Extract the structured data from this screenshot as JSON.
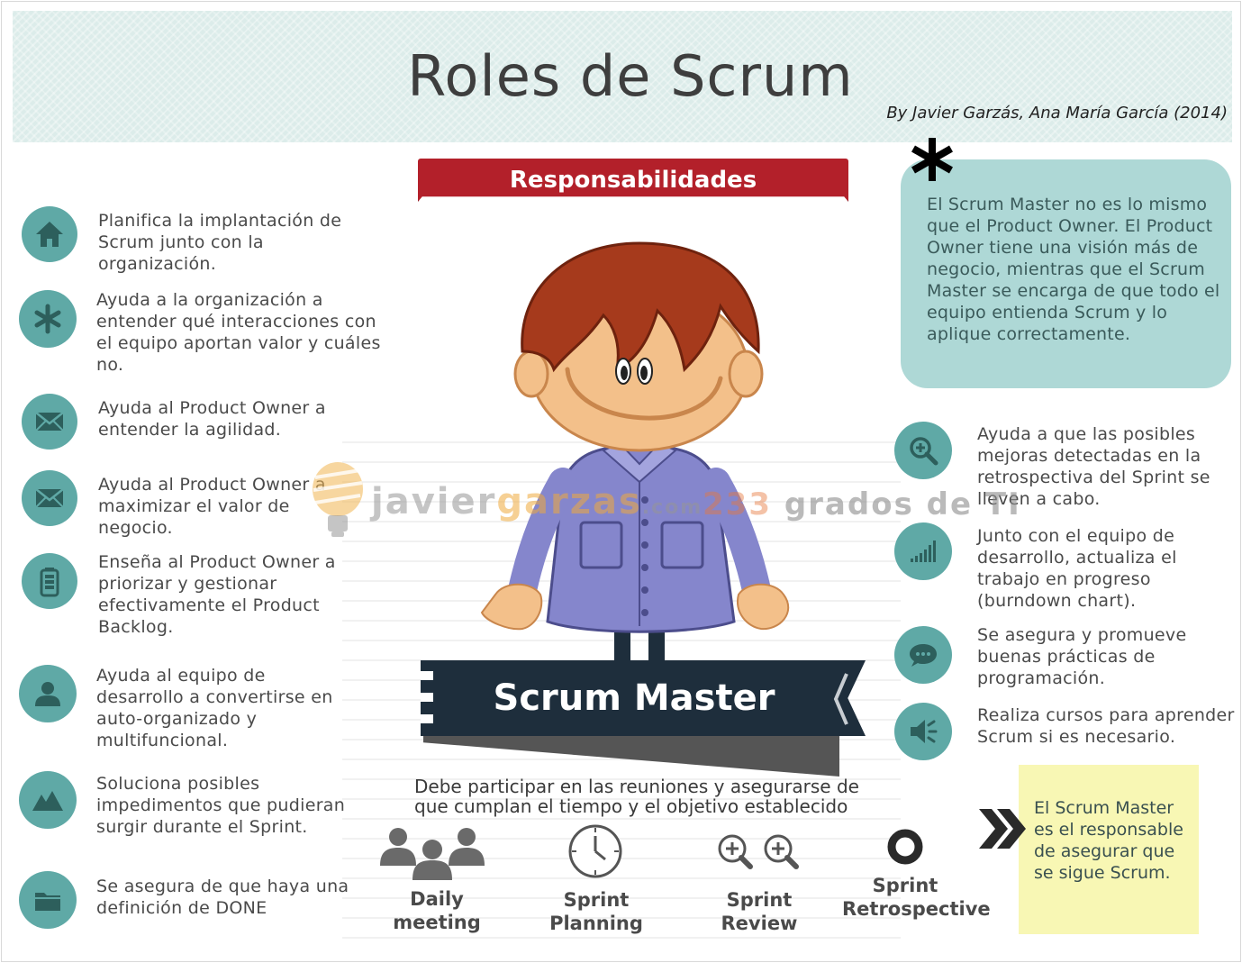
{
  "header": {
    "title": "Roles de Scrum",
    "byline": "By Javier Garzás, Ana María García (2014)"
  },
  "responsibilities_label": "Responsabilidades",
  "left_items": [
    {
      "icon": "house-icon",
      "text": "Planifica la implantación de Scrum junto con la organización."
    },
    {
      "icon": "asterisk-icon",
      "text": "Ayuda a la organización a entender qué interacciones con el equipo aportan valor y cuáles no."
    },
    {
      "icon": "envelope-icon",
      "text": "Ayuda al Product Owner a entender la agilidad."
    },
    {
      "icon": "envelope-icon",
      "text": "Ayuda al Product Owner a maximizar el valor de negocio."
    },
    {
      "icon": "battery-icon",
      "text": "Enseña al Product Owner a priorizar y gestionar efectivamente el Product Backlog."
    },
    {
      "icon": "user-icon",
      "text": "Ayuda al equipo de desarrollo a convertirse en auto-organizado y multifuncional."
    },
    {
      "icon": "mountain-icon",
      "text": "Soluciona posibles impedimentos que pudieran surgir durante el Sprint."
    },
    {
      "icon": "folder-icon",
      "text": "Se asegura de que haya una definición de DONE"
    }
  ],
  "note": "El Scrum Master no es lo mismo que el Product Owner. El Product Owner tiene una visión más de negocio, mientras que el Scrum Master se encarga de que todo el equipo entienda Scrum y lo aplique correctamente.",
  "right_items": [
    {
      "icon": "zoom-in-icon",
      "text": "Ayuda a que las posibles mejoras detectadas en la retrospectiva del Sprint se lleven a cabo."
    },
    {
      "icon": "signal-bars-icon",
      "text": "Junto con el equipo de desarrollo, actualiza el trabajo en progreso (burndown chart)."
    },
    {
      "icon": "chat-bubble-icon",
      "text": "Se asegura y promueve buenas prácticas de programación."
    },
    {
      "icon": "speaker-icon",
      "text": "Realiza cursos para aprender Scrum si es necesario."
    }
  ],
  "role_label": "Scrum Master",
  "participation_note": "Debe participar en las reuniones y asegurarse de que cumplan el tiempo y el objetivo establecido",
  "events": [
    {
      "icon": "people-group-icon",
      "label": "Daily meeting"
    },
    {
      "icon": "clock-icon",
      "label": "Sprint Planning"
    },
    {
      "icon": "double-zoom-icon",
      "label": "Sprint Review"
    },
    {
      "icon": "ring-icon",
      "label": "Sprint Retrospective"
    }
  ],
  "summary": "El Scrum Master es el responsable de asegurar que se sigue Scrum.",
  "watermarks": {
    "site_prefix": "javier",
    "site_accent": "garzas",
    "site_suffix": ".com",
    "blog_number": "233",
    "blog_name": "grados de TI"
  },
  "colors": {
    "header_bg": "#dcecea",
    "icon_teal": "#5fa9a6",
    "banner_red": "#b3202a",
    "banner_navy": "#1e2e3c",
    "note_bg": "#aed8d6",
    "summary_bg": "#f8f7b4"
  }
}
